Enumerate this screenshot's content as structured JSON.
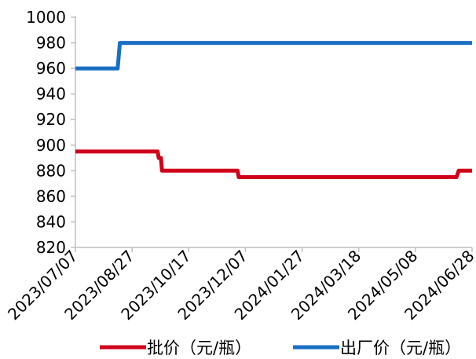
{
  "chart_data": {
    "type": "line",
    "title": "",
    "xlabel": "",
    "ylabel": "",
    "x_range": [
      "2023-07-07",
      "2024-06-28"
    ],
    "x_ticks": [
      "2023/07/07",
      "2023/08/27",
      "2023/10/17",
      "2023/12/07",
      "2024/01/27",
      "2024/03/18",
      "2024/05/08",
      "2024/06/28"
    ],
    "ylim": [
      820,
      1000
    ],
    "y_ticks": [
      "1000",
      "980",
      "960",
      "940",
      "920",
      "900",
      "880",
      "860",
      "840",
      "820"
    ],
    "grid": false,
    "legend_position": "bottom",
    "series": [
      {
        "name": "批价（元/瓶）",
        "color": "#d0021b",
        "points": [
          [
            "2023-07-07",
            895
          ],
          [
            "2023-09-19",
            895
          ],
          [
            "2023-09-20",
            890
          ],
          [
            "2023-09-22",
            890
          ],
          [
            "2023-09-23",
            880
          ],
          [
            "2023-11-30",
            880
          ],
          [
            "2023-12-01",
            875
          ],
          [
            "2024-06-14",
            875
          ],
          [
            "2024-06-16",
            880
          ],
          [
            "2024-06-28",
            880
          ]
        ]
      },
      {
        "name": "出厂价（元/瓶）",
        "color": "#1a6fc4",
        "points": [
          [
            "2023-07-07",
            960
          ],
          [
            "2023-08-14",
            960
          ],
          [
            "2023-08-16",
            980
          ],
          [
            "2024-06-28",
            980
          ]
        ]
      }
    ]
  }
}
